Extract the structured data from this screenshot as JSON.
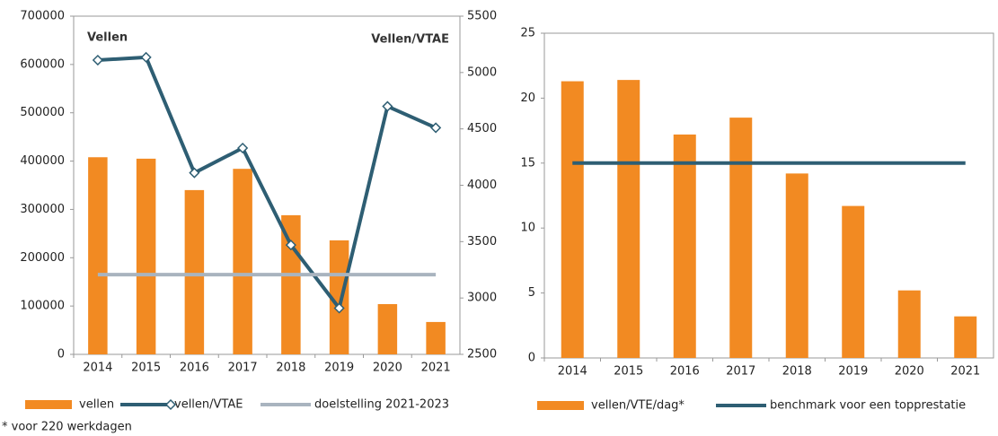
{
  "chart_data": [
    {
      "type": "bar",
      "categories": [
        "2014",
        "2015",
        "2016",
        "2017",
        "2018",
        "2019",
        "2020",
        "2021"
      ],
      "series": [
        {
          "name": "vellen",
          "color": "#f28a22",
          "values": [
            408000,
            405000,
            340000,
            384000,
            288000,
            236000,
            104000,
            67000
          ]
        },
        {
          "name": "vellen/VTAE",
          "type": "line",
          "axis": "y2",
          "marker": "diamond",
          "color": "#2e5e73",
          "values": [
            5110,
            5135,
            4110,
            4330,
            3470,
            2910,
            4700,
            4510
          ]
        },
        {
          "name": "doelstelling 2021-2023",
          "type": "line",
          "color": "#a9b4bf",
          "values": [
            165000,
            165000,
            165000,
            165000,
            165000,
            165000,
            165000,
            165000
          ]
        }
      ],
      "ylim": [
        0,
        700000
      ],
      "yticks": [
        0,
        100000,
        200000,
        300000,
        400000,
        500000,
        600000,
        700000
      ],
      "y2lim": [
        2500,
        5500
      ],
      "y2ticks": [
        2500,
        3000,
        3500,
        4000,
        4500,
        5000,
        5500
      ],
      "annotations": [
        "Vellen",
        "Vellen/VTAE"
      ]
    },
    {
      "type": "bar",
      "categories": [
        "2014",
        "2015",
        "2016",
        "2017",
        "2018",
        "2019",
        "2020",
        "2021"
      ],
      "series": [
        {
          "name": "vellen/VTE/dag*",
          "color": "#f28a22",
          "values": [
            21.3,
            21.4,
            17.2,
            18.5,
            14.2,
            11.7,
            5.2,
            3.2
          ]
        },
        {
          "name": "benchmark voor een topprestatie",
          "type": "line",
          "color": "#2e5e73",
          "values": [
            15,
            15,
            15,
            15,
            15,
            15,
            15,
            15
          ]
        }
      ],
      "ylim": [
        0,
        25
      ],
      "yticks": [
        0,
        5,
        10,
        15,
        20,
        25
      ]
    }
  ],
  "footnote": "* voor 220 werkdagen"
}
